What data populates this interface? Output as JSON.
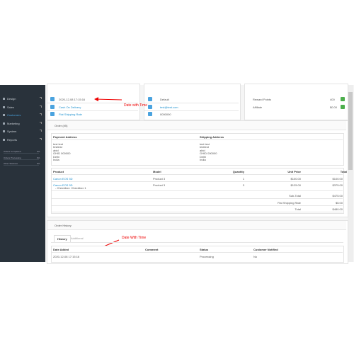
{
  "sidebar": {
    "menu": [
      "Design",
      "Sales",
      "Customers",
      "Marketing",
      "System",
      "Reports"
    ],
    "stats": [
      {
        "label": "Orders Completed",
        "value": "0%"
      },
      {
        "label": "Orders Processing",
        "value": "0%"
      },
      {
        "label": "Other Statuses",
        "value": "0%"
      }
    ]
  },
  "order_details": {
    "date_added": "2020-12-08 17:15:16",
    "payment_method": "Cash On Delivery",
    "shipping_method": "Flat Shipping Rate"
  },
  "customer": {
    "group": "Default",
    "email": "test@test.com",
    "telephone": "0000000"
  },
  "options": [
    {
      "label": "Reward Points",
      "value": "400"
    },
    {
      "label": "Affiliate",
      "value": "$0.00"
    }
  ],
  "annotations": [
    "Date with Time",
    "Date With Time"
  ],
  "order": {
    "title": "Order (#5)",
    "address_headers": [
      "Payment Address",
      "Shipping Address"
    ],
    "payment_address": [
      "test test",
      "testtest",
      "abid",
      "GHID 000000",
      "Delhi",
      "India"
    ],
    "shipping_address": [
      "test test",
      "testtest",
      "abid",
      "GHID 000000",
      "Delhi",
      "India"
    ],
    "product_headers": [
      "Product",
      "Model",
      "Quantity",
      "Unit Price",
      "Total"
    ],
    "products": [
      {
        "name": "Canon EOS 5D",
        "option": null,
        "model": "Product 3",
        "quantity": "1",
        "price": "$100.00",
        "total": "$100.00"
      },
      {
        "name": "Canon EOS 5D",
        "option": "- Checkbox: Checkbox 1",
        "model": "Product 3",
        "quantity": "3",
        "price": "$125.00",
        "total": "$375.00"
      }
    ],
    "totals": [
      {
        "label": "Sub-Total",
        "value": "$475.00"
      },
      {
        "label": "Flat Shipping Rate",
        "value": "$5.00"
      },
      {
        "label": "Total",
        "value": "$480.00"
      }
    ]
  },
  "history": {
    "title": "Order History",
    "tabs": [
      "History",
      "Additional"
    ],
    "headers": [
      "Date Added",
      "Comment",
      "Status",
      "Customer Notified"
    ],
    "rows": [
      [
        "2020-12-08 17:15:16",
        "",
        "Processing",
        "No"
      ]
    ]
  }
}
